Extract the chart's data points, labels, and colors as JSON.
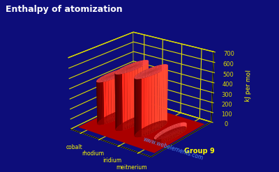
{
  "title": "Enthalpy of atomization",
  "background_color": "#0d0d7a",
  "bar_color_side": "#cc0000",
  "bar_color_light": "#ff3333",
  "bar_color_dark": "#880000",
  "bar_color_top": "#ff5555",
  "floor_color": "#aa0000",
  "ylabel": "kJ per mol",
  "xlabel": "Group 9",
  "yticks": [
    0,
    100,
    200,
    300,
    400,
    500,
    600,
    700
  ],
  "ylim": [
    0,
    700
  ],
  "elements": [
    "cobalt",
    "rhodium",
    "iridium",
    "meitnerium"
  ],
  "values": [
    425,
    556,
    564,
    40
  ],
  "axis_color": "#dddd00",
  "title_color": "#ffffff",
  "label_color": "#ffff00",
  "watermark": "www.webelements.com",
  "watermark_color": "#5599ff",
  "elev": 22,
  "azim": -52
}
